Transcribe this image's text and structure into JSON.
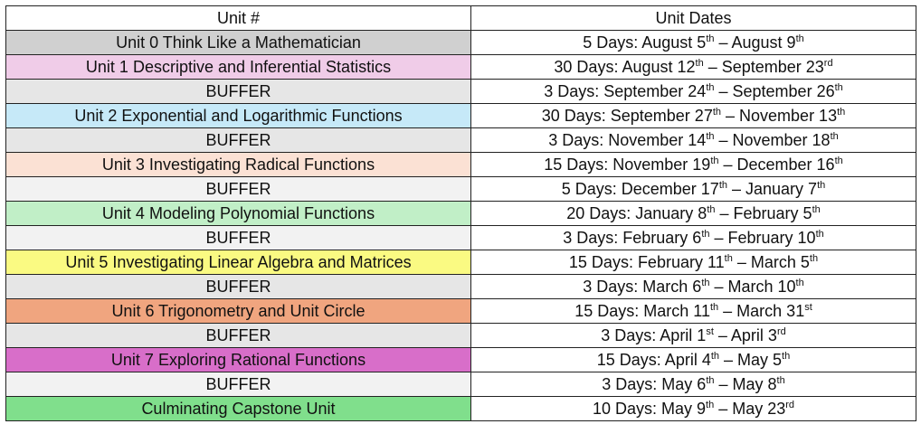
{
  "header": {
    "unit": "Unit #",
    "dates": "Unit Dates"
  },
  "rows": [
    {
      "unit": "Unit 0 Think Like a Mathematician",
      "color": "#d0d0d0",
      "days": "5 Days:  August 5",
      "s_sup": "th",
      "end": " – August 9",
      "e_sup": "th"
    },
    {
      "unit": "Unit 1 Descriptive and Inferential Statistics",
      "color": "#f0cce8",
      "days": "30 Days: August 12",
      "s_sup": "th",
      "end": " – September 23",
      "e_sup": "rd"
    },
    {
      "unit": "BUFFER",
      "color": "#e6e6e6",
      "days": "3 Days: September 24",
      "s_sup": "th",
      "end": " – September 26",
      "e_sup": "th"
    },
    {
      "unit": "Unit 2 Exponential and Logarithmic Functions",
      "color": "#c6e9f8",
      "days": "30 Days: September 27",
      "s_sup": "th",
      "end": " – November 13",
      "e_sup": "th"
    },
    {
      "unit": "BUFFER",
      "color": "#e6e6e6",
      "days": "3 Days: November 14",
      "s_sup": "th",
      "end": " – November 18",
      "e_sup": "th"
    },
    {
      "unit": "Unit 3 Investigating Radical Functions",
      "color": "#fbe1d4",
      "days": "15 Days:  November 19",
      "s_sup": "th",
      "end": " – December 16",
      "e_sup": "th"
    },
    {
      "unit": "BUFFER",
      "color": "#f2f2f2",
      "days": "5 Days: December 17",
      "s_sup": "th",
      "end": " – January 7",
      "e_sup": "th"
    },
    {
      "unit": "Unit 4 Modeling Polynomial Functions",
      "color": "#c1efc7",
      "days": "20 Days:  January 8",
      "s_sup": "th",
      "end": " – February 5",
      "e_sup": "th"
    },
    {
      "unit": "BUFFER",
      "color": "#f2f2f2",
      "days": "3 Days: February 6",
      "s_sup": "th",
      "end": " – February 10",
      "e_sup": "th"
    },
    {
      "unit": "Unit 5 Investigating Linear Algebra and Matrices",
      "color": "#fafa82",
      "days": "15 Days:  February 11",
      "s_sup": "th",
      "end": " – March 5",
      "e_sup": "th"
    },
    {
      "unit": "BUFFER",
      "color": "#e6e6e6",
      "days": "3 Days: March 6",
      "s_sup": "th",
      "end": " – March 10",
      "e_sup": "th"
    },
    {
      "unit": "Unit 6 Trigonometry and Unit Circle",
      "color": "#f0a57f",
      "days": "15 Days: March 11",
      "s_sup": "th",
      "end": " – March 31",
      "e_sup": "st"
    },
    {
      "unit": "BUFFER",
      "color": "#e6e6e6",
      "days": "3 Days: April 1",
      "s_sup": "st",
      "end": " – April 3",
      "e_sup": "rd"
    },
    {
      "unit": "Unit 7 Exploring Rational Functions",
      "color": "#d86ec9",
      "days": "15 Days:  April 4",
      "s_sup": "th",
      "end": " – May 5",
      "e_sup": "th"
    },
    {
      "unit": "BUFFER",
      "color": "#f2f2f2",
      "days": "3 Days: May 6",
      "s_sup": "th",
      "end": " – May 8",
      "e_sup": "th"
    },
    {
      "unit": "Culminating Capstone Unit",
      "color": "#80df8c",
      "days": "10 Days: May 9",
      "s_sup": "th",
      "end": " – May 23",
      "e_sup": "rd"
    }
  ]
}
